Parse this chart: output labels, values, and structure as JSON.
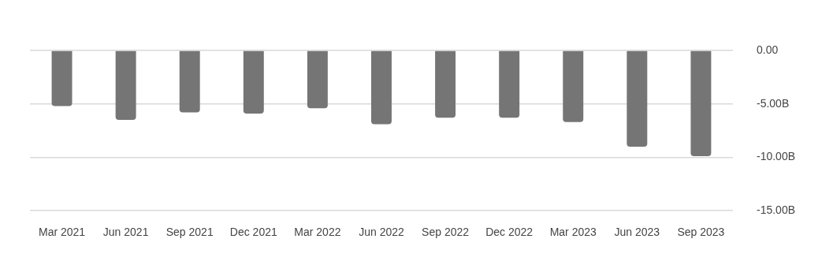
{
  "chart_data": {
    "type": "bar",
    "categories": [
      "Mar 2021",
      "Jun 2021",
      "Sep 2021",
      "Dec 2021",
      "Mar 2022",
      "Jun 2022",
      "Sep 2022",
      "Dec 2022",
      "Mar 2023",
      "Jun 2023",
      "Sep 2023"
    ],
    "values": [
      -5.2,
      -6.5,
      -5.8,
      -5.9,
      -5.4,
      -6.9,
      -6.3,
      -6.3,
      -6.7,
      -9.0,
      -9.9
    ],
    "color": "#757575",
    "ylim": [
      -15,
      0
    ],
    "yticks": [
      {
        "value": 0,
        "label": "0.00"
      },
      {
        "value": -5,
        "label": "-5.00B"
      },
      {
        "value": -10,
        "label": "-10.00B"
      },
      {
        "value": -15,
        "label": "-15.00B"
      }
    ],
    "grid": "y",
    "legend": false
  }
}
